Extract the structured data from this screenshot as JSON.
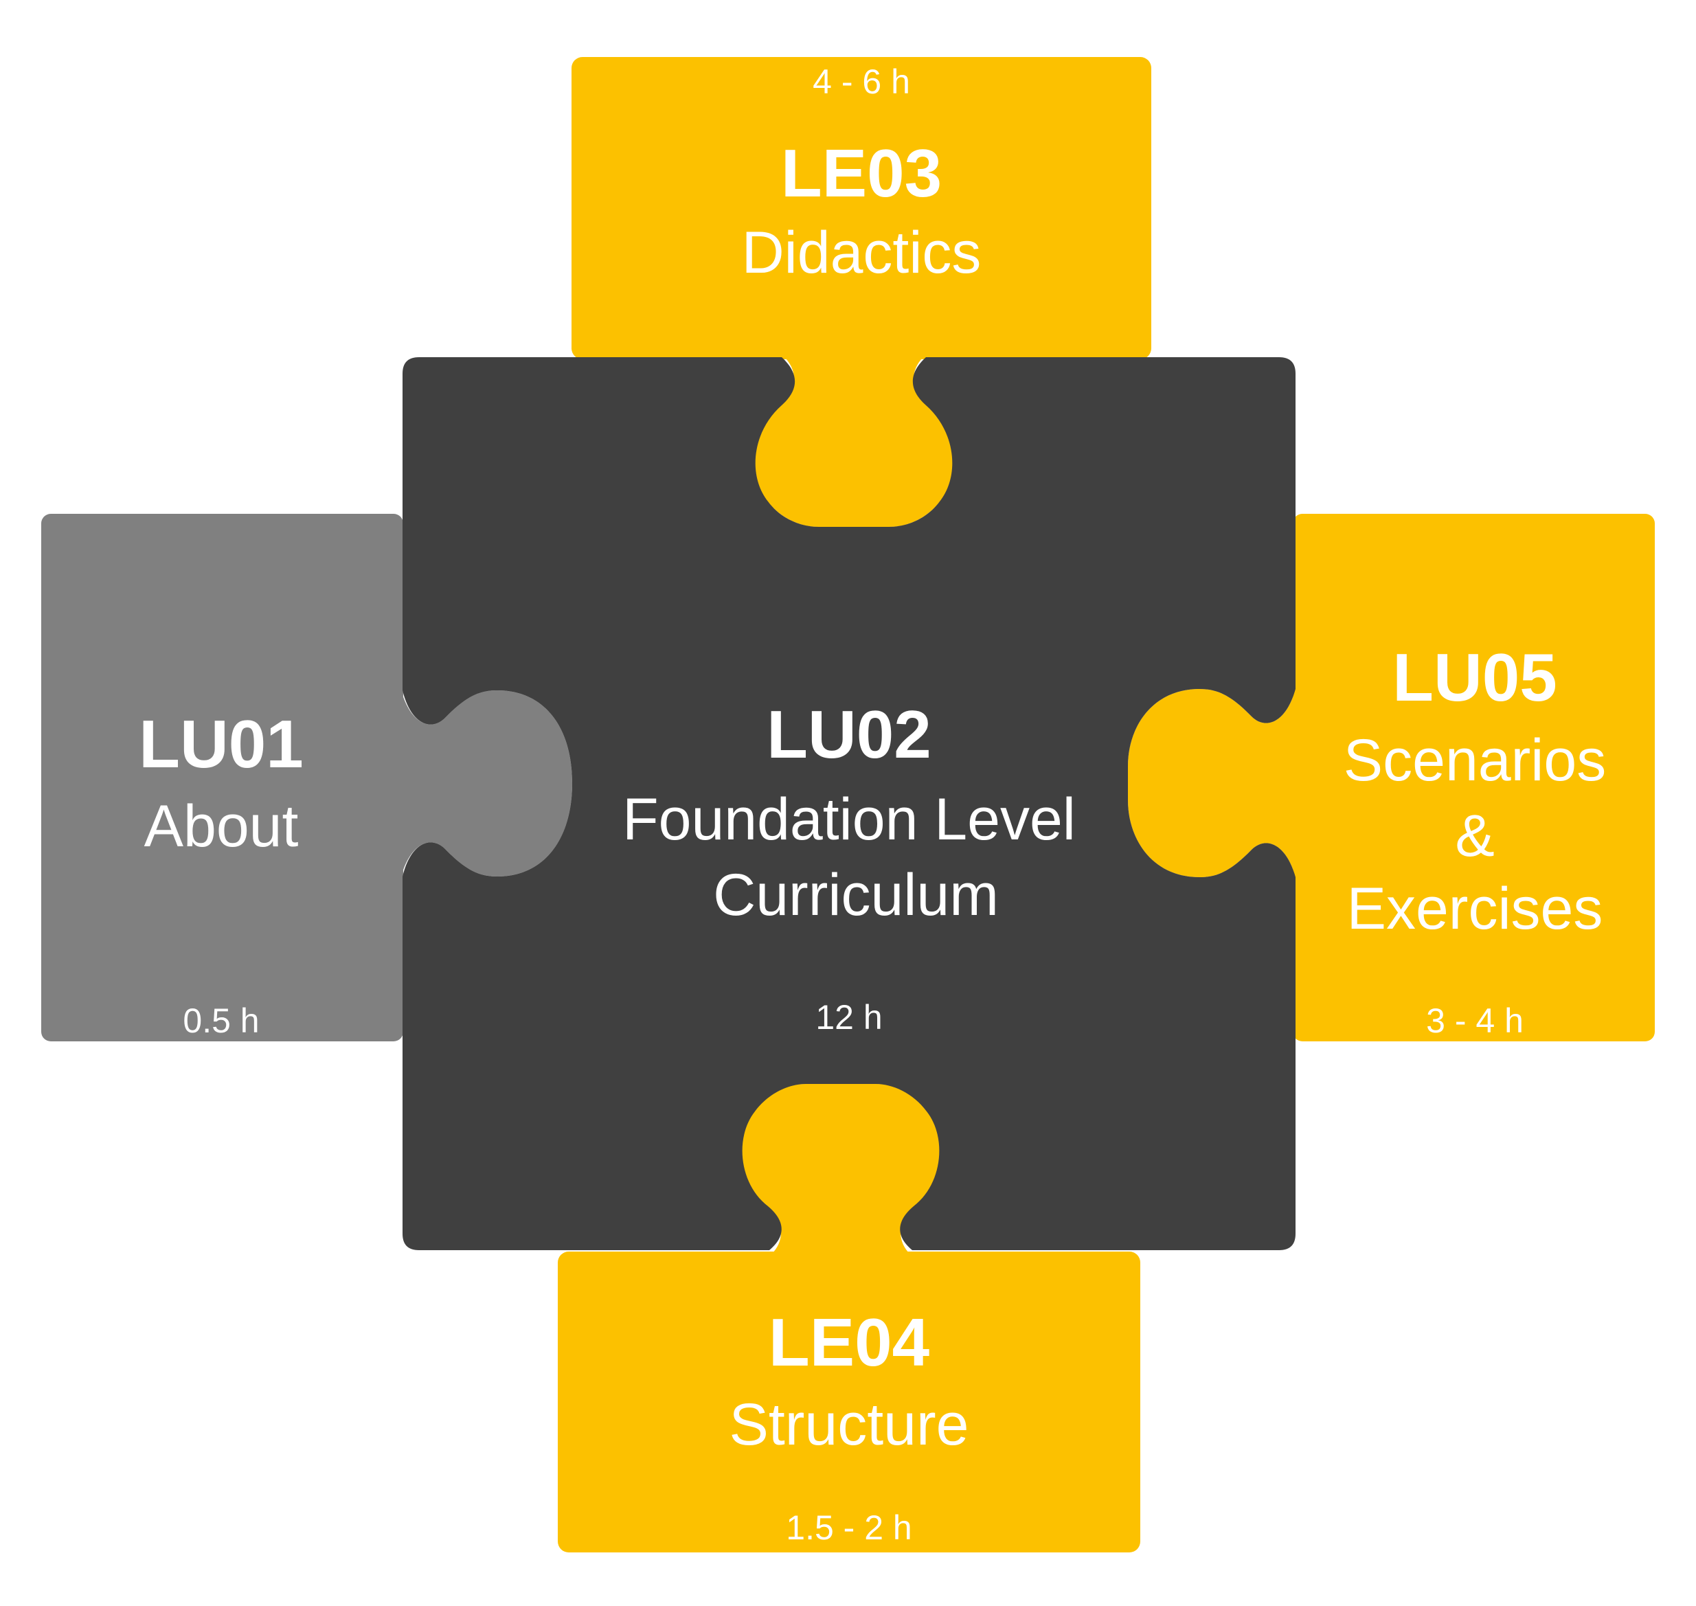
{
  "colors": {
    "yellow": "#FCC100",
    "gray": "#808080",
    "dark": "#404040",
    "text": "#FFFFFF"
  },
  "pieces": {
    "le03": {
      "code": "LE03",
      "title": "Didactics",
      "duration": "4 - 6 h"
    },
    "lu01": {
      "code": "LU01",
      "title": "About",
      "duration": "0.5 h"
    },
    "lu02": {
      "code": "LU02",
      "title_line1": "Foundation Level",
      "title_line2": "Curriculum",
      "duration": "12 h"
    },
    "lu05": {
      "code": "LU05",
      "title_line1": "Scenarios",
      "title_line2": "&",
      "title_line3": "Exercises",
      "duration": "3 - 4 h"
    },
    "le04": {
      "code": "LE04",
      "title": "Structure",
      "duration": "1.5 - 2 h"
    }
  }
}
